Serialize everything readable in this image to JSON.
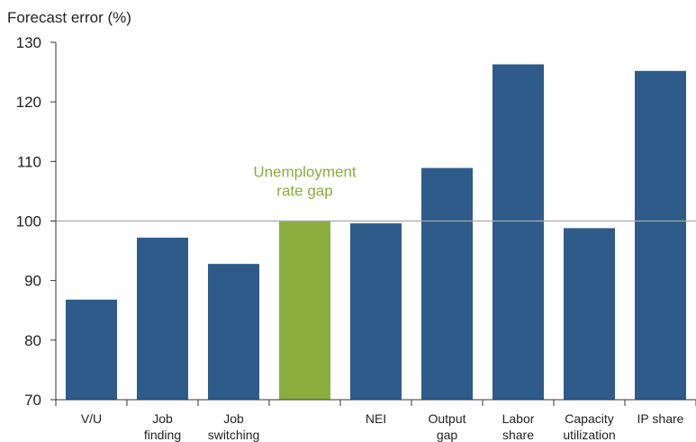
{
  "chart_data": {
    "type": "bar",
    "ylabel": "Forecast error (%)",
    "ylim": [
      70,
      130
    ],
    "yticks": [
      70,
      80,
      90,
      100,
      110,
      120,
      130
    ],
    "reference_line": 100,
    "categories": [
      [
        "V/U"
      ],
      [
        "Job",
        "finding"
      ],
      [
        "Job",
        "switching"
      ],
      [],
      [
        "NEI"
      ],
      [
        "Output",
        "gap"
      ],
      [
        "Labor",
        "share"
      ],
      [
        "Capacity",
        "utilization"
      ],
      [
        "IP share"
      ]
    ],
    "values": [
      86.8,
      97.2,
      92.8,
      100.0,
      99.6,
      108.9,
      126.3,
      98.8,
      125.2
    ],
    "highlight_index": 3,
    "highlight_annotation": [
      "Unemployment",
      "rate gap"
    ],
    "colors": {
      "bar": "#2e5b8a",
      "highlight": "#8aad3e",
      "reference_line": "#a8a8a8",
      "axis": "#333333",
      "text": "#222222"
    }
  }
}
